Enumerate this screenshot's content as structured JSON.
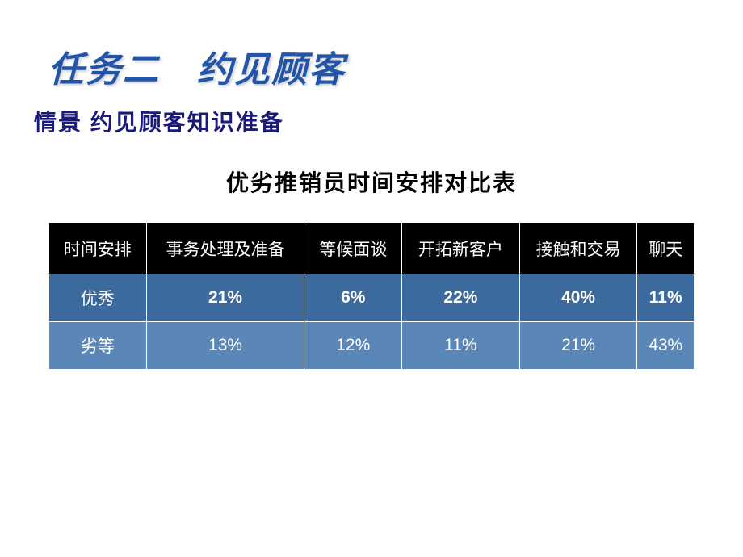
{
  "titles": {
    "main": "任务二　约见顾客",
    "sub": "情景 约见顾客知识准备",
    "table": "优劣推销员时间安排对比表"
  },
  "table": {
    "type": "table",
    "columns": [
      "时间安排",
      "事务处理及准备",
      "等候面谈",
      "开拓新客户",
      "接触和交易",
      "聊天"
    ],
    "rows": [
      {
        "label": "优秀",
        "values": [
          "21%",
          "6%",
          "22%",
          "40%",
          "11%"
        ],
        "row_class": "row-excellent"
      },
      {
        "label": "劣等",
        "values": [
          "13%",
          "12%",
          "11%",
          "21%",
          "43%"
        ],
        "row_class": "row-poor"
      }
    ],
    "header_bg": "#000000",
    "header_text_color": "#ffffff",
    "row_colors": [
      "#3c6a9c",
      "#5b87b8"
    ],
    "border_color": "#ffffff",
    "cell_text_color": "#ffffff",
    "font_size": 21
  },
  "colors": {
    "main_title": "#2254a8",
    "sub_title": "#1a1a7a",
    "table_title": "#000000",
    "background": "#ffffff"
  },
  "typography": {
    "main_title_fontsize": 44,
    "sub_title_fontsize": 28,
    "table_title_fontsize": 28,
    "main_title_style": "bold italic",
    "sub_title_style": "bold"
  }
}
